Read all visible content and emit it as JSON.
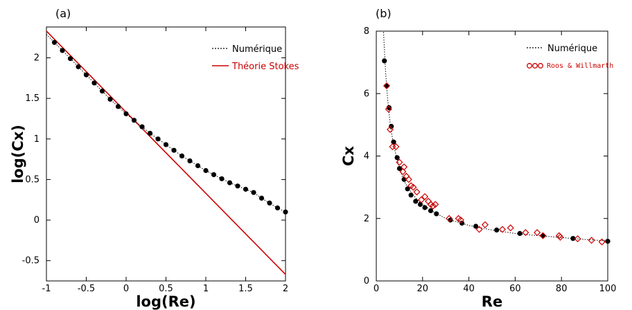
{
  "chart_data": [
    {
      "panel_label": "(a)",
      "type": "line",
      "xlabel": "log(Re)",
      "ylabel": "log(Cx)",
      "xlim": [
        -1,
        2
      ],
      "ylim": [
        -0.75,
        2.38
      ],
      "xticks": [
        "-1",
        "-0.5",
        "0",
        "0.5",
        "1",
        "1.5",
        "2"
      ],
      "yticks": [
        "-0.5",
        "0",
        "0.5",
        "1",
        "1.5",
        "2"
      ],
      "grid": false,
      "legend_position": "top-right",
      "series": [
        {
          "name": "Numérique",
          "style": "dotted",
          "color": "#000000",
          "x": [
            -0.9,
            -0.8,
            -0.7,
            -0.6,
            -0.5,
            -0.4,
            -0.3,
            -0.2,
            -0.1,
            0.0,
            0.1,
            0.2,
            0.3,
            0.4,
            0.5,
            0.6,
            0.7,
            0.8,
            0.9,
            1.0,
            1.1,
            1.2,
            1.3,
            1.4,
            1.5,
            1.6,
            1.7,
            1.8,
            1.9,
            2.0
          ],
          "y": [
            2.19,
            2.09,
            1.99,
            1.89,
            1.79,
            1.69,
            1.59,
            1.49,
            1.4,
            1.31,
            1.23,
            1.15,
            1.07,
            1.0,
            0.93,
            0.86,
            0.79,
            0.73,
            0.67,
            0.61,
            0.56,
            0.51,
            0.46,
            0.42,
            0.38,
            0.34,
            0.27,
            0.21,
            0.15,
            0.1
          ]
        },
        {
          "name": "Théorie Stokes",
          "style": "solid",
          "color": "#cc0000",
          "x": [
            -1,
            2
          ],
          "y": [
            2.33,
            -0.67
          ]
        }
      ]
    },
    {
      "panel_label": "(b)",
      "type": "scatter",
      "xlabel": "Re",
      "ylabel": "Cx",
      "xlim": [
        0,
        100
      ],
      "ylim": [
        0,
        8
      ],
      "xticks": [
        "0",
        "20",
        "40",
        "60",
        "80",
        "100"
      ],
      "yticks": [
        "0",
        "2",
        "4",
        "6",
        "8"
      ],
      "grid": false,
      "legend_position": "top-right",
      "series": [
        {
          "name": "Numérique",
          "style": "dotted-markers",
          "color": "#000000",
          "curve_x": [
            3,
            3.5,
            4,
            4.5,
            5,
            6,
            7,
            8,
            10,
            12,
            14,
            16,
            18,
            20,
            25,
            30,
            40,
            50,
            60,
            70,
            80,
            90,
            100
          ],
          "curve_y": [
            8.2,
            7.4,
            6.7,
            6.2,
            5.75,
            5.05,
            4.55,
            4.2,
            3.6,
            3.2,
            2.95,
            2.75,
            2.58,
            2.45,
            2.2,
            2.0,
            1.78,
            1.63,
            1.52,
            1.45,
            1.39,
            1.33,
            1.28
          ],
          "x": [
            3.5,
            4.5,
            5.5,
            6.5,
            7.5,
            9,
            10,
            12,
            13.5,
            15,
            17,
            19,
            21,
            23.5,
            26,
            32,
            37,
            43,
            52,
            62,
            72,
            85,
            100
          ],
          "y": [
            7.05,
            6.25,
            5.55,
            4.95,
            4.45,
            3.95,
            3.6,
            3.25,
            2.95,
            2.75,
            2.55,
            2.45,
            2.35,
            2.25,
            2.15,
            1.95,
            1.85,
            1.75,
            1.63,
            1.52,
            1.45,
            1.36,
            1.27
          ]
        },
        {
          "name": "Roos & Willmarth",
          "style": "open-diamond",
          "color": "#cc0000",
          "x": [
            4.5,
            5.3,
            6.0,
            7.0,
            8.5,
            10,
            11.5,
            12,
            13,
            14,
            15,
            16,
            17.5,
            19.5,
            21,
            22.5,
            23.5,
            24.5,
            25.5,
            31.5,
            35.5,
            36.5,
            44.5,
            47,
            54.5,
            58,
            64.5,
            69.5,
            72,
            79,
            79.5,
            87,
            93,
            97.5
          ],
          "y": [
            6.25,
            5.5,
            4.85,
            4.3,
            4.3,
            3.8,
            3.5,
            3.65,
            3.35,
            3.25,
            3.05,
            3.0,
            2.85,
            2.6,
            2.7,
            2.55,
            2.45,
            2.4,
            2.45,
            2.0,
            2.0,
            1.95,
            1.65,
            1.8,
            1.65,
            1.7,
            1.55,
            1.55,
            1.45,
            1.45,
            1.4,
            1.35,
            1.3,
            1.25
          ]
        }
      ]
    }
  ]
}
